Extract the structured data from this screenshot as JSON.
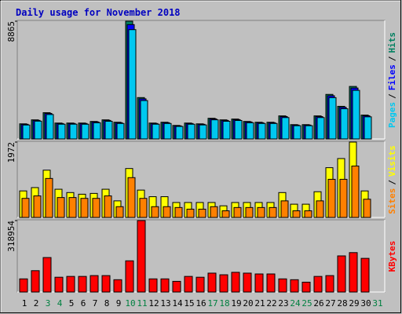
{
  "chart_data": [
    {
      "type": "bar",
      "title": "Daily usage for November 2018",
      "legend_separator": "/",
      "ylim": [
        0,
        8865
      ],
      "yticks": [
        8865
      ],
      "series": [
        {
          "name": "Hits",
          "color": "#008060",
          "values": [
            1138,
            1438,
            1977,
            1198,
            1198,
            1198,
            1318,
            1438,
            1258,
            8865,
            3115,
            1198,
            1258,
            1018,
            1198,
            1138,
            1557,
            1438,
            1498,
            1318,
            1258,
            1258,
            1737,
            1078,
            1078,
            1737,
            3354,
            2456,
            3953,
            1797,
            null
          ]
        },
        {
          "name": "Files",
          "color": "#0000ff",
          "values": [
            1102,
            1396,
            1921,
            1160,
            1165,
            1162,
            1280,
            1395,
            1220,
            8610,
            3020,
            1162,
            1221,
            987,
            1161,
            1104,
            1510,
            1395,
            1452,
            1279,
            1220,
            1221,
            1685,
            1046,
            1045,
            1685,
            3253,
            2382,
            3834,
            1743,
            null
          ]
        },
        {
          "name": "Pages",
          "color": "#00c8f0",
          "values": [
            1050,
            1340,
            1840,
            1110,
            1112,
            1108,
            1220,
            1330,
            1165,
            8230,
            2890,
            1110,
            1165,
            942,
            1108,
            1055,
            1440,
            1330,
            1390,
            1220,
            1165,
            1165,
            1610,
            998,
            998,
            1610,
            3110,
            2275,
            3660,
            1665,
            null
          ]
        }
      ]
    },
    {
      "type": "bar",
      "legend_separator": "/",
      "ylim": [
        0,
        1972
      ],
      "yticks": [
        1972
      ],
      "series": [
        {
          "name": "Visits",
          "color": "#ffff00",
          "values": [
            694,
            781,
            1237,
            738,
            651,
            608,
            629,
            738,
            434,
            1280,
            716,
            543,
            543,
            391,
            391,
            391,
            391,
            304,
            391,
            391,
            391,
            391,
            651,
            347,
            347,
            673,
            1302,
            1541,
            1972,
            694,
            null
          ]
        },
        {
          "name": "Sites",
          "color": "#ff8000",
          "values": [
            499,
            564,
            1020,
            521,
            521,
            499,
            499,
            564,
            282,
            1042,
            499,
            282,
            282,
            260,
            217,
            217,
            282,
            174,
            260,
            260,
            260,
            260,
            434,
            174,
            174,
            434,
            998,
            998,
            1345,
            477,
            null
          ]
        }
      ]
    },
    {
      "type": "bar",
      "ylim": [
        0,
        318954
      ],
      "yticks": [
        318954
      ],
      "categories": [
        "1",
        "2",
        "3",
        "4",
        "5",
        "6",
        "7",
        "8",
        "9",
        "10",
        "11",
        "12",
        "13",
        "14",
        "15",
        "16",
        "17",
        "18",
        "19",
        "20",
        "21",
        "22",
        "23",
        "24",
        "25",
        "26",
        "27",
        "28",
        "29",
        "30",
        "31"
      ],
      "category_colors": [
        "#000000",
        "#000000",
        "#008040",
        "#008040",
        "#000000",
        "#000000",
        "#000000",
        "#000000",
        "#000000",
        "#008040",
        "#008040",
        "#000000",
        "#000000",
        "#000000",
        "#000000",
        "#000000",
        "#008040",
        "#008040",
        "#000000",
        "#000000",
        "#000000",
        "#000000",
        "#000000",
        "#008040",
        "#008040",
        "#000000",
        "#000000",
        "#000000",
        "#000000",
        "#000000",
        "#008040"
      ],
      "series": [
        {
          "name": "KBytes",
          "color": "#ff0000",
          "values": [
            58656,
            95316,
            153972,
            65988,
            69654,
            69654,
            73320,
            73320,
            54990,
            139308,
            318954,
            58656,
            58656,
            47658,
            69654,
            65988,
            84318,
            76986,
            87984,
            84318,
            80652,
            80652,
            58656,
            54990,
            43992,
            69654,
            73320,
            161304,
            175968,
            150306,
            null
          ]
        }
      ]
    }
  ]
}
